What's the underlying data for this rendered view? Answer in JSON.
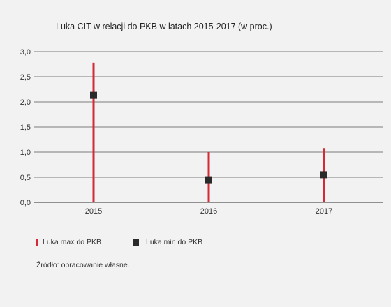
{
  "title": "Luka CIT w relacji do PKB w latach 2015-2017 (w proc.)",
  "legend": {
    "max_label": "Luka max do PKB",
    "min_label": "Luka min do PKB"
  },
  "source": "Źródło: opracowanie własne.",
  "colors": {
    "max_bar": "#d42a35",
    "min_marker": "#2a2a2a",
    "grid": "#555555"
  },
  "chart_data": {
    "type": "bar",
    "categories": [
      "2015",
      "2016",
      "2017"
    ],
    "series": [
      {
        "name": "Luka max do PKB",
        "values": [
          2.78,
          1.0,
          1.08
        ]
      },
      {
        "name": "Luka min do PKB",
        "values": [
          2.13,
          0.45,
          0.55
        ]
      }
    ],
    "ylim": [
      0,
      3.0
    ],
    "yticks": [
      "0,0",
      "0,5",
      "1,0",
      "1,5",
      "2,0",
      "2,5",
      "3,0"
    ],
    "grid": true,
    "legend_position": "bottom-left"
  }
}
